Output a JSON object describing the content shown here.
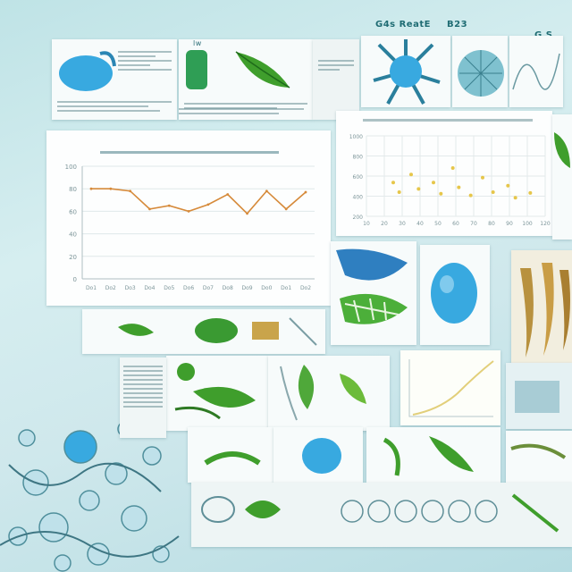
{
  "collage": {
    "top_labels": [
      "G4s ReatE",
      "lw",
      "B23",
      "G S"
    ],
    "panels": {
      "line_chart": {
        "y_ticks": [
          "100",
          "80",
          "60",
          "40",
          "20",
          "0"
        ],
        "x_ticks": [
          "Do1",
          "Do2",
          "Do3",
          "Do4",
          "Do5",
          "Do6",
          "Do7",
          "Do8",
          "Do9",
          "Do0",
          "Do1",
          "Do2"
        ]
      },
      "scatter": {
        "y_ticks": [
          "1000",
          "800",
          "600",
          "400",
          "200"
        ],
        "x_ticks": [
          "10",
          "20",
          "30",
          "40",
          "50",
          "60",
          "70",
          "80",
          "90",
          "100",
          "120"
        ]
      }
    },
    "colors": {
      "accent_blue": "#38a9e0",
      "leaf_green": "#3f9e2c",
      "line_orange": "#d68a3a",
      "scatter_yellow": "#e6c64a",
      "seaweed_tan": "#b8913e"
    },
    "icons": [
      "water-droplet-icon",
      "leaf-icon",
      "seaweed-icon",
      "cell-icon",
      "bubble-icon"
    ]
  },
  "chart_data": [
    {
      "type": "line",
      "x": [
        "Do1",
        "Do2",
        "Do3",
        "Do4",
        "Do5",
        "Do6",
        "Do7",
        "Do8",
        "Do9",
        "Do0",
        "Do1",
        "Do2"
      ],
      "series": [
        {
          "values": [
            80,
            80,
            78,
            62,
            65,
            60,
            66,
            75,
            58,
            78,
            62,
            77
          ]
        }
      ],
      "ylim": [
        0,
        100
      ]
    },
    {
      "type": "scatter",
      "series": [
        {
          "values": [
            [
              18,
              420
            ],
            [
              22,
              300
            ],
            [
              30,
              520
            ],
            [
              35,
              340
            ],
            [
              45,
              420
            ],
            [
              50,
              280
            ],
            [
              58,
              600
            ],
            [
              62,
              360
            ],
            [
              70,
              260
            ],
            [
              78,
              480
            ],
            [
              85,
              300
            ],
            [
              95,
              380
            ],
            [
              100,
              230
            ],
            [
              110,
              290
            ]
          ]
        }
      ],
      "xlim": [
        0,
        120
      ],
      "ylim": [
        0,
        1000
      ]
    }
  ]
}
